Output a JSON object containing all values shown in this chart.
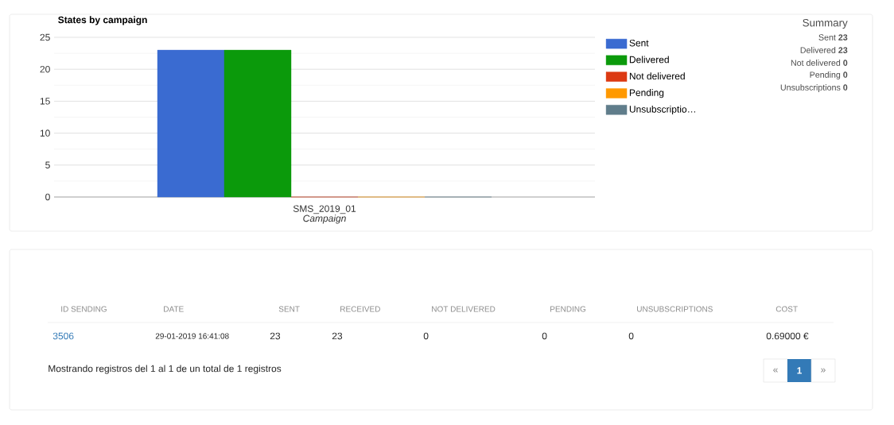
{
  "chart_data": [
    {
      "type": "bar",
      "title": "States by campaign",
      "xlabel": "Campaign",
      "categories": [
        "SMS_2019_01"
      ],
      "series": [
        {
          "name": "Sent",
          "color": "#3a6bd1",
          "values": [
            23
          ]
        },
        {
          "name": "Delivered",
          "color": "#0b9a0b",
          "values": [
            23
          ]
        },
        {
          "name": "Not delivered",
          "color": "#dc3912",
          "values": [
            0
          ]
        },
        {
          "name": "Pending",
          "color": "#ff9900",
          "values": [
            0
          ]
        },
        {
          "name": "Unsubscriptio…",
          "color": "#607d8b",
          "values": [
            0
          ]
        }
      ],
      "ylim": [
        0,
        25
      ],
      "yticks": [
        0,
        5,
        10,
        15,
        20,
        25
      ],
      "grid": "y",
      "legend": "right",
      "annotations": [
        "Summary",
        "Sent **23**",
        "Delivered **23**",
        "Not delivered **0**",
        "Pending **0**",
        "Unsubscriptions **0**"
      ]
    },
    {
      "type": "other",
      "categories": [
        "ID SENDING",
        "DATE",
        "SENT",
        "RECEIVED",
        "NOT DELIVERED",
        "PENDING",
        "UNSUBSCRIPTIONS",
        "COST"
      ],
      "annotations": [
        "3506",
        "29-01-2019 16:41:08",
        "23",
        "23",
        "0",
        "0",
        "0",
        "0.69000 €",
        "Mostrando registros del 1 al 1 de un total de 1 registros",
        "«",
        "1",
        "»"
      ]
    }
  ]
}
